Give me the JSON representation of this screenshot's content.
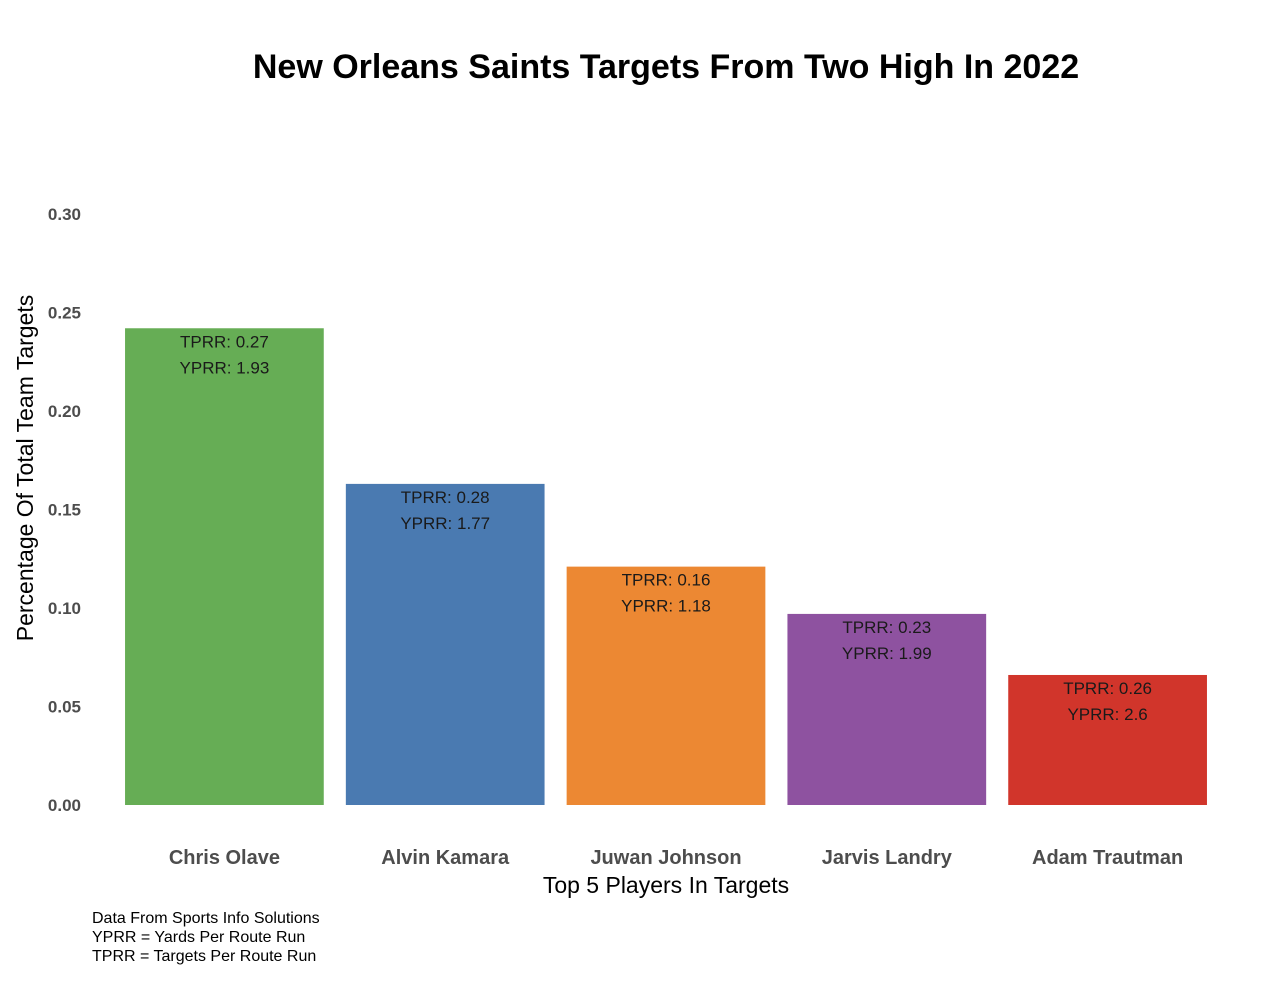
{
  "chart_data": {
    "type": "bar",
    "title": "New Orleans Saints Targets From Two High In 2022",
    "xlabel": "Top 5 Players In Targets",
    "ylabel": "Percentage Of Total Team Targets",
    "categories": [
      "Chris Olave",
      "Alvin Kamara",
      "Juwan Johnson",
      "Jarvis Landry",
      "Adam Trautman"
    ],
    "values": [
      0.242,
      0.163,
      0.121,
      0.097,
      0.066
    ],
    "colors": [
      "#66ad55",
      "#4a7ab1",
      "#ec8833",
      "#8e52a0",
      "#d1352b"
    ],
    "bar_labels": [
      [
        "TPRR: 0.27",
        "YPRR: 1.93"
      ],
      [
        "TPRR: 0.28",
        "YPRR: 1.77"
      ],
      [
        "TPRR: 0.16",
        "YPRR: 1.18"
      ],
      [
        "TPRR: 0.23",
        "YPRR: 1.99"
      ],
      [
        "TPRR: 0.26",
        "YPRR: 2.6"
      ]
    ],
    "ylim": [
      0,
      0.3
    ],
    "y_ticks": [
      "0.00",
      "0.05",
      "0.10",
      "0.15",
      "0.20",
      "0.25",
      "0.30"
    ],
    "grid": false,
    "caption": [
      "Data From Sports Info Solutions",
      "YPRR = Yards Per Route Run",
      "TPRR = Targets Per Route Run"
    ]
  }
}
